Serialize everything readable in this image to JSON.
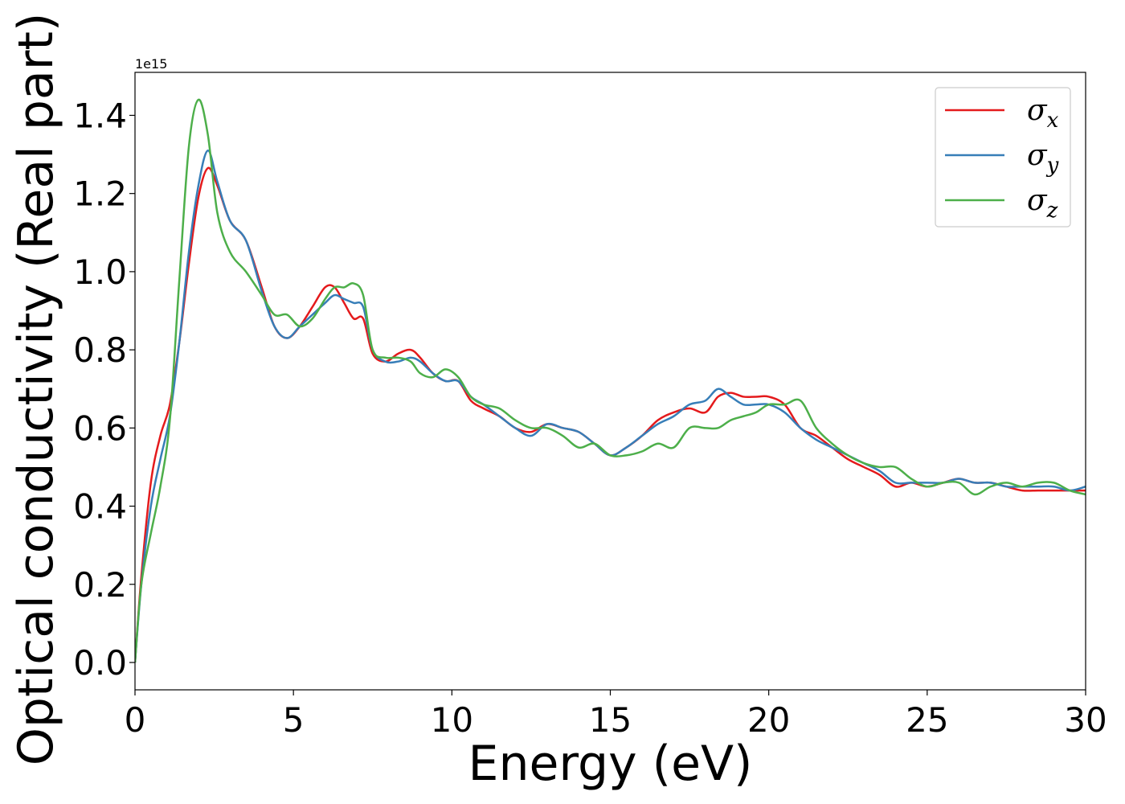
{
  "chart_data": {
    "type": "line",
    "xlabel": "Energy (eV)",
    "ylabel": "Optical conductivity (Real part)",
    "y_offset_label": "1e15",
    "xlim": [
      0,
      30
    ],
    "ylim": [
      -0.07,
      1.51
    ],
    "x_ticks": [
      0,
      5,
      10,
      15,
      20,
      25,
      30
    ],
    "x_tick_labels": [
      "0",
      "5",
      "10",
      "15",
      "20",
      "25",
      "30"
    ],
    "y_ticks": [
      0.0,
      0.2,
      0.4,
      0.6,
      0.8,
      1.0,
      1.2,
      1.4
    ],
    "y_tick_labels": [
      "0.0",
      "0.2",
      "0.4",
      "0.6",
      "0.8",
      "1.0",
      "1.2",
      "1.4"
    ],
    "grid": false,
    "legend_position": "top-right",
    "series": [
      {
        "name": "σ",
        "subscript": "x",
        "color": "#e41a1c",
        "x": [
          0,
          0.2,
          0.5,
          0.8,
          1.1,
          1.4,
          1.7,
          2.0,
          2.3,
          2.6,
          3.0,
          3.5,
          4.0,
          4.4,
          4.8,
          5.2,
          5.6,
          6.0,
          6.3,
          6.6,
          6.9,
          7.2,
          7.5,
          7.9,
          8.3,
          8.7,
          9.0,
          9.4,
          9.8,
          10.2,
          10.6,
          11.0,
          11.5,
          12.0,
          12.5,
          13.0,
          13.5,
          14.0,
          14.5,
          15.0,
          15.5,
          16.0,
          16.5,
          17.0,
          17.5,
          18.0,
          18.4,
          18.8,
          19.2,
          19.6,
          20.0,
          20.5,
          21.0,
          21.5,
          22.0,
          22.5,
          23.0,
          23.5,
          24.0,
          24.5,
          25.0,
          25.5,
          26.0,
          26.5,
          27.0,
          27.5,
          28.0,
          28.5,
          29.0,
          29.5,
          30.0
        ],
        "y": [
          0.0,
          0.22,
          0.46,
          0.58,
          0.66,
          0.82,
          1.02,
          1.19,
          1.265,
          1.22,
          1.13,
          1.08,
          0.96,
          0.86,
          0.83,
          0.86,
          0.91,
          0.96,
          0.96,
          0.92,
          0.88,
          0.88,
          0.79,
          0.77,
          0.79,
          0.8,
          0.78,
          0.74,
          0.72,
          0.72,
          0.67,
          0.65,
          0.63,
          0.6,
          0.59,
          0.61,
          0.6,
          0.59,
          0.56,
          0.53,
          0.55,
          0.58,
          0.62,
          0.64,
          0.65,
          0.64,
          0.68,
          0.69,
          0.68,
          0.68,
          0.68,
          0.66,
          0.6,
          0.58,
          0.55,
          0.52,
          0.5,
          0.48,
          0.45,
          0.46,
          0.45,
          0.46,
          0.47,
          0.46,
          0.46,
          0.45,
          0.44,
          0.44,
          0.44,
          0.44,
          0.44
        ]
      },
      {
        "name": "σ",
        "subscript": "y",
        "color": "#377eb8",
        "x": [
          0,
          0.2,
          0.5,
          0.8,
          1.1,
          1.4,
          1.7,
          2.0,
          2.3,
          2.6,
          3.0,
          3.5,
          4.0,
          4.4,
          4.8,
          5.2,
          5.6,
          6.0,
          6.3,
          6.6,
          6.9,
          7.2,
          7.5,
          7.9,
          8.3,
          8.7,
          9.0,
          9.4,
          9.8,
          10.2,
          10.6,
          11.0,
          11.5,
          12.0,
          12.5,
          13.0,
          13.5,
          14.0,
          14.5,
          15.0,
          15.5,
          16.0,
          16.5,
          17.0,
          17.5,
          18.0,
          18.4,
          18.8,
          19.2,
          19.6,
          20.0,
          20.5,
          21.0,
          21.5,
          22.0,
          22.5,
          23.0,
          23.5,
          24.0,
          24.5,
          25.0,
          25.5,
          26.0,
          26.5,
          27.0,
          27.5,
          28.0,
          28.5,
          29.0,
          29.5,
          30.0
        ],
        "y": [
          0.0,
          0.2,
          0.4,
          0.52,
          0.63,
          0.82,
          1.05,
          1.22,
          1.31,
          1.23,
          1.13,
          1.08,
          0.95,
          0.86,
          0.83,
          0.86,
          0.89,
          0.92,
          0.94,
          0.93,
          0.92,
          0.91,
          0.8,
          0.77,
          0.77,
          0.78,
          0.77,
          0.74,
          0.72,
          0.72,
          0.68,
          0.66,
          0.63,
          0.6,
          0.58,
          0.61,
          0.6,
          0.59,
          0.56,
          0.53,
          0.55,
          0.58,
          0.61,
          0.63,
          0.66,
          0.67,
          0.7,
          0.68,
          0.66,
          0.66,
          0.66,
          0.64,
          0.6,
          0.57,
          0.55,
          0.53,
          0.51,
          0.49,
          0.46,
          0.46,
          0.46,
          0.46,
          0.47,
          0.46,
          0.46,
          0.45,
          0.45,
          0.45,
          0.45,
          0.44,
          0.45
        ]
      },
      {
        "name": "σ",
        "subscript": "z",
        "color": "#4daf4a",
        "x": [
          0,
          0.2,
          0.5,
          0.8,
          1.1,
          1.4,
          1.7,
          2.0,
          2.3,
          2.6,
          3.0,
          3.5,
          4.0,
          4.4,
          4.8,
          5.2,
          5.6,
          6.0,
          6.3,
          6.6,
          6.9,
          7.2,
          7.5,
          7.9,
          8.3,
          8.7,
          9.0,
          9.4,
          9.8,
          10.2,
          10.6,
          11.0,
          11.5,
          12.0,
          12.5,
          13.0,
          13.5,
          14.0,
          14.5,
          15.0,
          15.5,
          16.0,
          16.5,
          17.0,
          17.5,
          18.0,
          18.4,
          18.8,
          19.2,
          19.6,
          20.0,
          20.5,
          21.0,
          21.5,
          22.0,
          22.5,
          23.0,
          23.5,
          24.0,
          24.5,
          25.0,
          25.5,
          26.0,
          26.5,
          27.0,
          27.5,
          28.0,
          28.5,
          29.0,
          29.5,
          30.0
        ],
        "y": [
          0.0,
          0.2,
          0.33,
          0.45,
          0.62,
          0.98,
          1.32,
          1.44,
          1.35,
          1.15,
          1.05,
          1.0,
          0.94,
          0.89,
          0.89,
          0.86,
          0.88,
          0.93,
          0.96,
          0.96,
          0.97,
          0.94,
          0.8,
          0.78,
          0.78,
          0.77,
          0.74,
          0.73,
          0.75,
          0.73,
          0.68,
          0.66,
          0.65,
          0.62,
          0.6,
          0.6,
          0.58,
          0.55,
          0.56,
          0.53,
          0.53,
          0.54,
          0.56,
          0.55,
          0.6,
          0.6,
          0.6,
          0.62,
          0.63,
          0.64,
          0.66,
          0.66,
          0.67,
          0.6,
          0.56,
          0.53,
          0.51,
          0.5,
          0.5,
          0.47,
          0.45,
          0.46,
          0.46,
          0.43,
          0.45,
          0.46,
          0.45,
          0.46,
          0.46,
          0.44,
          0.43
        ]
      }
    ]
  }
}
